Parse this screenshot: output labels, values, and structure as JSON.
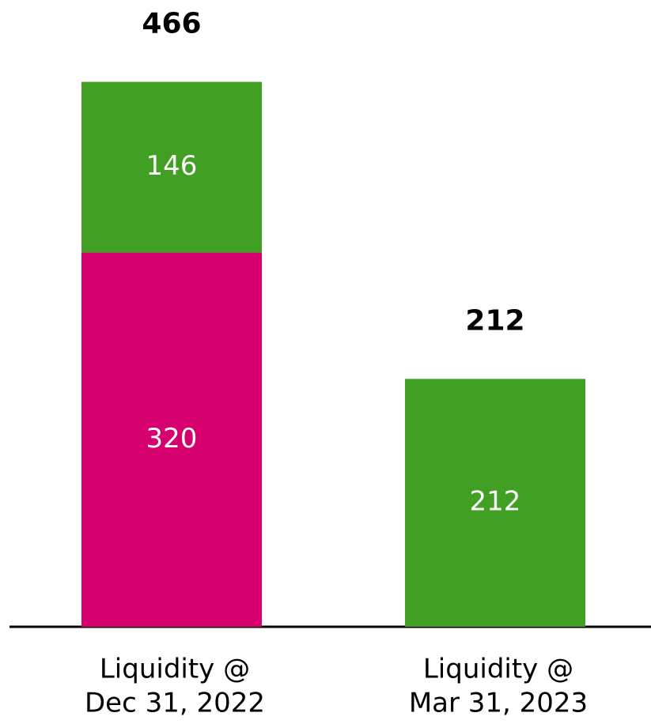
{
  "chart_data": {
    "type": "stacked_bar",
    "categories": [
      [
        "Liquidity @",
        "Dec 31, 2022"
      ],
      [
        "Liquidity @",
        "Mar 31, 2023"
      ]
    ],
    "series": [
      {
        "color": "#d6006f",
        "values": [
          320,
          null
        ]
      },
      {
        "color": "#41a023",
        "values": [
          146,
          212
        ]
      }
    ],
    "totals": [
      466,
      212
    ],
    "ylim": [
      0,
      536
    ]
  }
}
